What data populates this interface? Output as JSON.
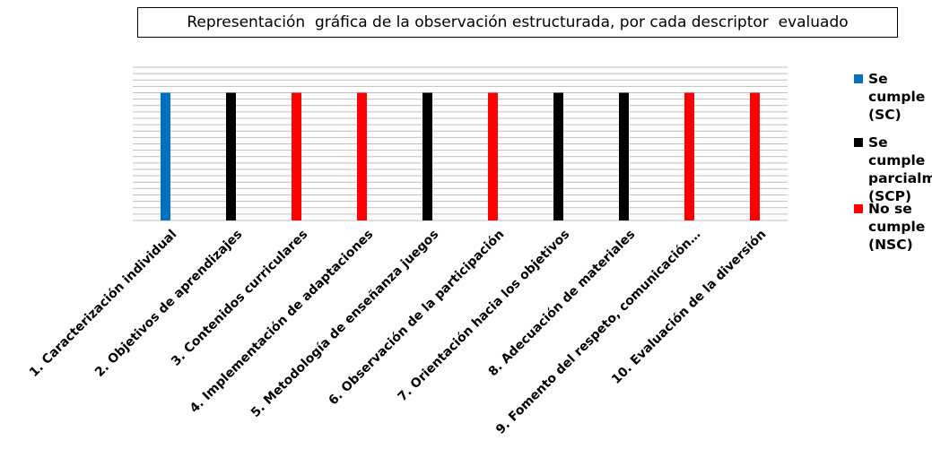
{
  "chart_data": {
    "type": "bar",
    "title": "Representación  gráfica de la observación estructurada, por cada descriptor  evaluado",
    "categories": [
      "1. Caracterización individual",
      "2. Objetivos de aprendizajes",
      "3. Contenidos curriculares",
      "4. Implementación de adaptaciones",
      "5. Metodología de enseñanza juegos",
      "6. Observación de la participación",
      "7. Orientación hacia los objetivos",
      "8. Adecuación de materiales",
      "9. Fomento del respeto, comunicación…",
      "10. Evaluación de la diversión"
    ],
    "values": [
      1,
      1,
      1,
      1,
      1,
      1,
      1,
      1,
      1,
      1
    ],
    "bar_series": [
      "Se cumple (SC)",
      "Se cumple parcialmente (SCP)",
      "No se cumple (NSC)",
      "No se cumple (NSC)",
      "Se cumple parcialmente (SCP)",
      "No se cumple (NSC)",
      "Se cumple parcialmente (SCP)",
      "Se cumple parcialmente (SCP)",
      "No se cumple (NSC)",
      "No se cumple (NSC)"
    ],
    "ylim": [
      0,
      1.2
    ],
    "grid": true,
    "legend": {
      "placement": "right",
      "items": [
        {
          "name": "Se cumple (SC)",
          "color": "#0070C0"
        },
        {
          "name": "Se cumple parcialmente (SCP)",
          "color": "#000000"
        },
        {
          "name": "No se cumple (NSC)",
          "color": "#FF0000"
        }
      ]
    }
  }
}
